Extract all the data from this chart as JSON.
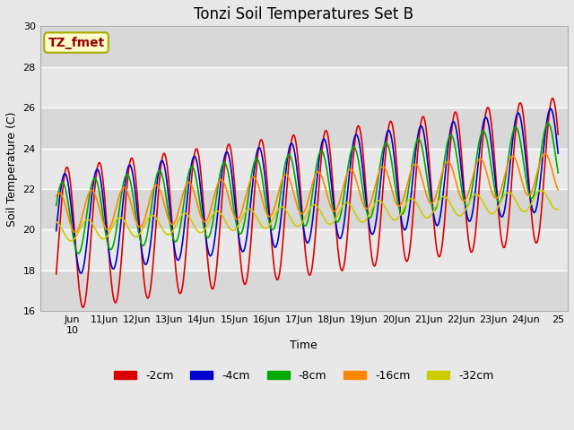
{
  "title": "Tonzi Soil Temperatures Set B",
  "xlabel": "Time",
  "ylabel": "Soil Temperature (C)",
  "ylim": [
    16,
    30
  ],
  "xlim_start": 9.0,
  "xlim_end": 25.3,
  "x_tick_positions": [
    9.5,
    10.5,
    11.5,
    12.5,
    13.5,
    14.5,
    15.5,
    16.5,
    17.5,
    18.5,
    19.5,
    20.5,
    21.5,
    22.5,
    23.5,
    24.5
  ],
  "x_tick_labels": [
    "Jun\n10",
    "11Jun",
    "12Jun",
    "13Jun",
    "14Jun",
    "15Jun",
    "16Jun",
    "17Jun",
    "18Jun",
    "19Jun",
    "20Jun",
    "21Jun",
    "22Jun",
    "23Jun",
    "24Jun",
    "25"
  ],
  "annotation_text": "TZ_fmet",
  "annotation_box_facecolor": "#ffffcc",
  "annotation_box_edgecolor": "#aaaa00",
  "annotation_text_color": "#990000",
  "series": {
    "-2cm": {
      "color": "#dd0000",
      "amplitude": 3.5,
      "phase": -0.5,
      "trend_start": 19.5,
      "trend_end": 23.0
    },
    "-4cm": {
      "color": "#0000cc",
      "amplitude": 2.5,
      "phase": -0.1,
      "trend_start": 20.2,
      "trend_end": 23.5
    },
    "-8cm": {
      "color": "#00aa00",
      "amplitude": 1.8,
      "phase": 0.4,
      "trend_start": 20.5,
      "trend_end": 23.5
    },
    "-16cm": {
      "color": "#ff8800",
      "amplitude": 1.0,
      "phase": 1.0,
      "trend_start": 20.8,
      "trend_end": 22.8
    },
    "-32cm": {
      "color": "#cccc00",
      "amplitude": 0.5,
      "phase": 1.8,
      "trend_start": 19.9,
      "trend_end": 21.5
    }
  },
  "legend_entries": [
    "-2cm",
    "-4cm",
    "-8cm",
    "-16cm",
    "-32cm"
  ],
  "legend_colors": [
    "#dd0000",
    "#0000cc",
    "#00aa00",
    "#ff8800",
    "#cccc00"
  ],
  "fig_bg_color": "#e8e8e8",
  "plot_bg_color": "#d8d8d8",
  "grid_color": "#ffffff",
  "title_fontsize": 12,
  "axis_label_fontsize": 9,
  "tick_fontsize": 8,
  "legend_fontsize": 9
}
